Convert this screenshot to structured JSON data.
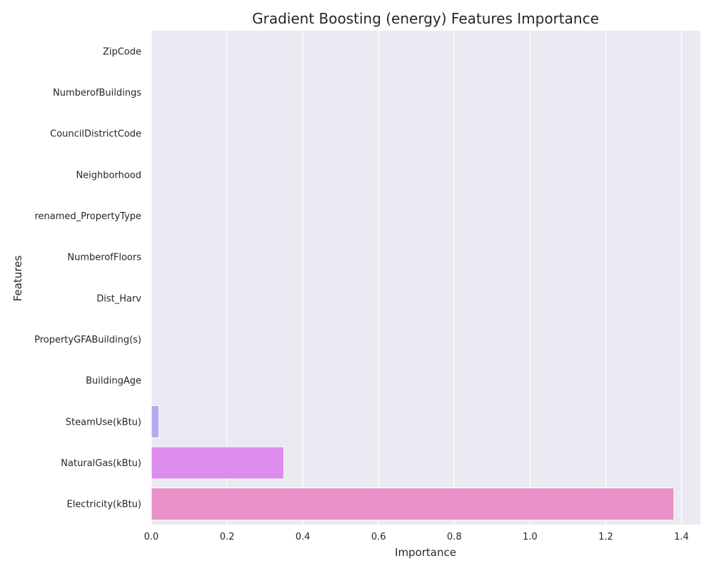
{
  "chart_data": {
    "type": "bar",
    "orientation": "horizontal",
    "title": "Gradient Boosting (energy) Features Importance",
    "xlabel": "Importance",
    "ylabel": "Features",
    "xlim": [
      0,
      1.45
    ],
    "xticks": [
      0.0,
      0.2,
      0.4,
      0.6,
      0.8,
      1.0,
      1.2,
      1.4
    ],
    "xtick_labels": [
      "0.0",
      "0.2",
      "0.4",
      "0.6",
      "0.8",
      "1.0",
      "1.2",
      "1.4"
    ],
    "grid": true,
    "categories": [
      "ZipCode",
      "NumberofBuildings",
      "CouncilDistrictCode",
      "Neighborhood",
      "renamed_PropertyType",
      "NumberofFloors",
      "Dist_Harv",
      "PropertyGFABuilding(s)",
      "BuildingAge",
      "SteamUse(kBtu)",
      "NaturalGas(kBtu)",
      "Electricity(kBtu)"
    ],
    "values": [
      0.0,
      0.0,
      0.0,
      0.0,
      0.0,
      0.0,
      0.0,
      0.0,
      0.0,
      0.02,
      0.35,
      1.38
    ],
    "colors": [
      "#3ba3ec",
      "#38a9c5",
      "#39a7a6",
      "#36ad7c",
      "#4bb14e",
      "#8ea337",
      "#a59b38",
      "#c38f35",
      "#f77189",
      "#b6a9ee",
      "#dd8bed",
      "#ea90c8"
    ]
  }
}
